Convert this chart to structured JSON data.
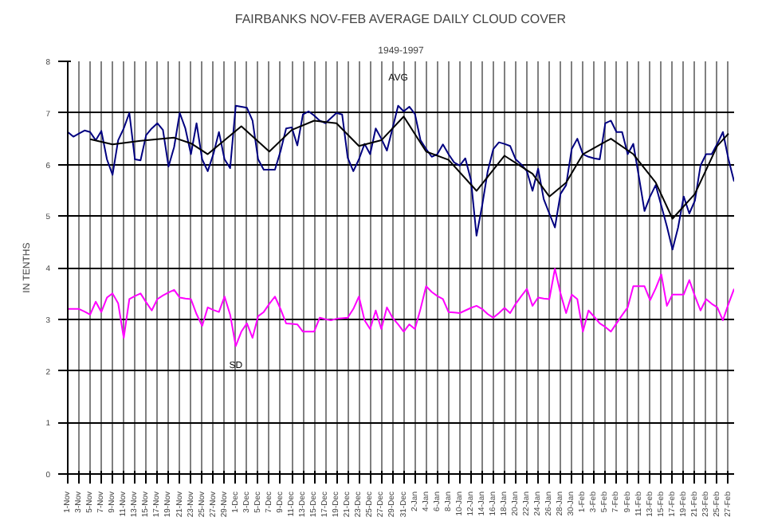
{
  "chart_data": {
    "type": "line",
    "title": "FAIRBANKS NOV-FEB AVERAGE DAILY CLOUD COVER",
    "subtitle": "1949-1997",
    "ylabel": "IN TENTHS",
    "ylim": [
      0,
      8
    ],
    "yticks": [
      0,
      1,
      2,
      3,
      4,
      5,
      6,
      7,
      8
    ],
    "grid": true,
    "marker": "none",
    "line_style": "solid",
    "categories": [
      "1-Nov",
      null,
      "3-Nov",
      null,
      "5-Nov",
      null,
      "7-Nov",
      null,
      "9-Nov",
      null,
      "11-Nov",
      null,
      "13-Nov",
      null,
      "15-Nov",
      null,
      "17-Nov",
      null,
      "19-Nov",
      null,
      "21-Nov",
      null,
      "23-Nov",
      null,
      "25-Nov",
      null,
      "27-Nov",
      null,
      "29-Nov",
      null,
      "1-Dec",
      null,
      "3-Dec",
      null,
      "5-Dec",
      null,
      "7-Dec",
      null,
      "9-Dec",
      null,
      "11-Dec",
      null,
      "13-Dec",
      null,
      "15-Dec",
      null,
      "17-Dec",
      null,
      "19-Dec",
      null,
      "21-Dec",
      null,
      "23-Dec",
      null,
      "25-Dec",
      null,
      "27-Dec",
      null,
      "29-Dec",
      null,
      "31-Dec",
      null,
      "2-Jan",
      null,
      "4-Jan",
      null,
      "6-Jan",
      null,
      "8-Jan",
      null,
      "10-Jan",
      null,
      "12-Jan",
      null,
      "14-Jan",
      null,
      "16-Jan",
      null,
      "18-Jan",
      null,
      "20-Jan",
      null,
      "22-Jan",
      null,
      "24-Jan",
      null,
      "26-Jan",
      null,
      "28-Jan",
      null,
      "30-Jan",
      null,
      "1-Feb",
      null,
      "3-Feb",
      null,
      "5-Feb",
      null,
      "7-Feb",
      null,
      "9-Feb",
      null,
      "11-Feb",
      null,
      "13-Feb",
      null,
      "15-Feb",
      null,
      "17-Feb",
      null,
      "19-Feb",
      null,
      "21-Feb",
      null,
      "23-Feb",
      null,
      "25-Feb",
      null,
      "27-Feb",
      null
    ],
    "series": [
      {
        "name": "AVG",
        "color": "#000080",
        "values": [
          6.63,
          6.54,
          6.6,
          6.66,
          6.63,
          6.47,
          6.65,
          6.1,
          5.8,
          6.47,
          6.7,
          7.0,
          6.1,
          6.08,
          6.57,
          6.7,
          6.8,
          6.67,
          5.96,
          6.34,
          7.0,
          6.7,
          6.2,
          6.8,
          6.1,
          5.87,
          6.2,
          6.63,
          6.1,
          5.93,
          7.14,
          7.12,
          7.1,
          6.85,
          6.1,
          5.9,
          5.9,
          5.9,
          6.26,
          6.7,
          6.72,
          6.37,
          6.97,
          7.03,
          6.95,
          6.85,
          6.8,
          6.9,
          7.0,
          6.97,
          6.13,
          5.87,
          6.1,
          6.4,
          6.2,
          6.7,
          6.5,
          6.27,
          6.7,
          7.14,
          7.03,
          7.12,
          6.98,
          6.47,
          6.3,
          6.15,
          6.2,
          6.39,
          6.2,
          6.04,
          5.98,
          6.12,
          5.7,
          4.62,
          5.2,
          5.87,
          6.3,
          6.43,
          6.4,
          6.36,
          6.1,
          6.0,
          5.87,
          5.49,
          5.92,
          5.33,
          5.05,
          4.78,
          5.43,
          5.6,
          6.3,
          6.5,
          6.2,
          6.15,
          6.12,
          6.1,
          6.8,
          6.85,
          6.63,
          6.63,
          6.2,
          6.4,
          5.76,
          5.1,
          5.38,
          5.6,
          5.2,
          4.8,
          4.35,
          4.78,
          5.38,
          5.05,
          5.3,
          5.98,
          6.2,
          6.2,
          6.4,
          6.63,
          6.1,
          5.67
        ]
      },
      {
        "color": "#000000",
        "values": [
          null,
          null,
          null,
          null,
          6.49,
          null,
          null,
          null,
          6.39,
          null,
          null,
          null,
          null,
          6.46,
          null,
          null,
          null,
          null,
          null,
          6.52,
          null,
          null,
          6.41,
          null,
          null,
          6.2,
          null,
          null,
          null,
          null,
          null,
          6.74,
          null,
          null,
          null,
          null,
          6.25,
          null,
          null,
          null,
          6.67,
          null,
          null,
          null,
          6.85,
          null,
          null,
          null,
          6.8,
          null,
          null,
          null,
          6.36,
          null,
          null,
          null,
          6.47,
          null,
          null,
          null,
          6.93,
          null,
          null,
          null,
          6.25,
          null,
          null,
          null,
          6.09,
          null,
          null,
          null,
          null,
          5.49,
          null,
          null,
          null,
          null,
          6.17,
          null,
          null,
          null,
          null,
          5.82,
          null,
          null,
          5.38,
          null,
          null,
          5.65,
          null,
          null,
          6.2,
          null,
          null,
          null,
          null,
          6.5,
          null,
          null,
          null,
          6.2,
          null,
          null,
          null,
          5.65,
          null,
          null,
          4.95,
          null,
          null,
          null,
          5.43,
          null,
          null,
          null,
          6.36,
          null,
          6.6,
          null
        ]
      },
      {
        "name": "SD",
        "color": "#ff00ff",
        "values": [
          3.2,
          3.2,
          3.2,
          3.15,
          3.09,
          3.34,
          3.14,
          3.42,
          3.5,
          3.31,
          2.64,
          3.39,
          3.45,
          3.5,
          3.33,
          3.17,
          3.39,
          3.46,
          3.52,
          3.57,
          3.42,
          3.4,
          3.39,
          3.1,
          2.87,
          3.23,
          3.18,
          3.14,
          3.44,
          3.09,
          2.48,
          2.76,
          2.92,
          2.64,
          3.06,
          3.14,
          3.3,
          3.44,
          3.2,
          2.92,
          2.91,
          2.9,
          2.76,
          2.76,
          2.76,
          3.03,
          3.0,
          2.98,
          3.01,
          3.02,
          3.03,
          3.2,
          3.44,
          2.98,
          2.81,
          3.17,
          2.81,
          3.23,
          3.03,
          2.9,
          2.76,
          2.9,
          2.81,
          3.2,
          3.64,
          3.53,
          3.45,
          3.39,
          3.14,
          3.13,
          3.12,
          3.17,
          3.22,
          3.26,
          3.2,
          3.1,
          3.03,
          3.12,
          3.22,
          3.12,
          3.3,
          3.45,
          3.59,
          3.26,
          3.42,
          3.4,
          3.39,
          3.98,
          3.5,
          3.12,
          3.48,
          3.39,
          2.76,
          3.17,
          3.05,
          2.92,
          2.85,
          2.76,
          2.92,
          3.08,
          3.23,
          3.64,
          3.64,
          3.64,
          3.37,
          3.6,
          3.87,
          3.26,
          3.48,
          3.48,
          3.48,
          3.76,
          3.45,
          3.17,
          3.39,
          3.3,
          3.23,
          2.98,
          3.3,
          3.59
        ]
      }
    ]
  }
}
